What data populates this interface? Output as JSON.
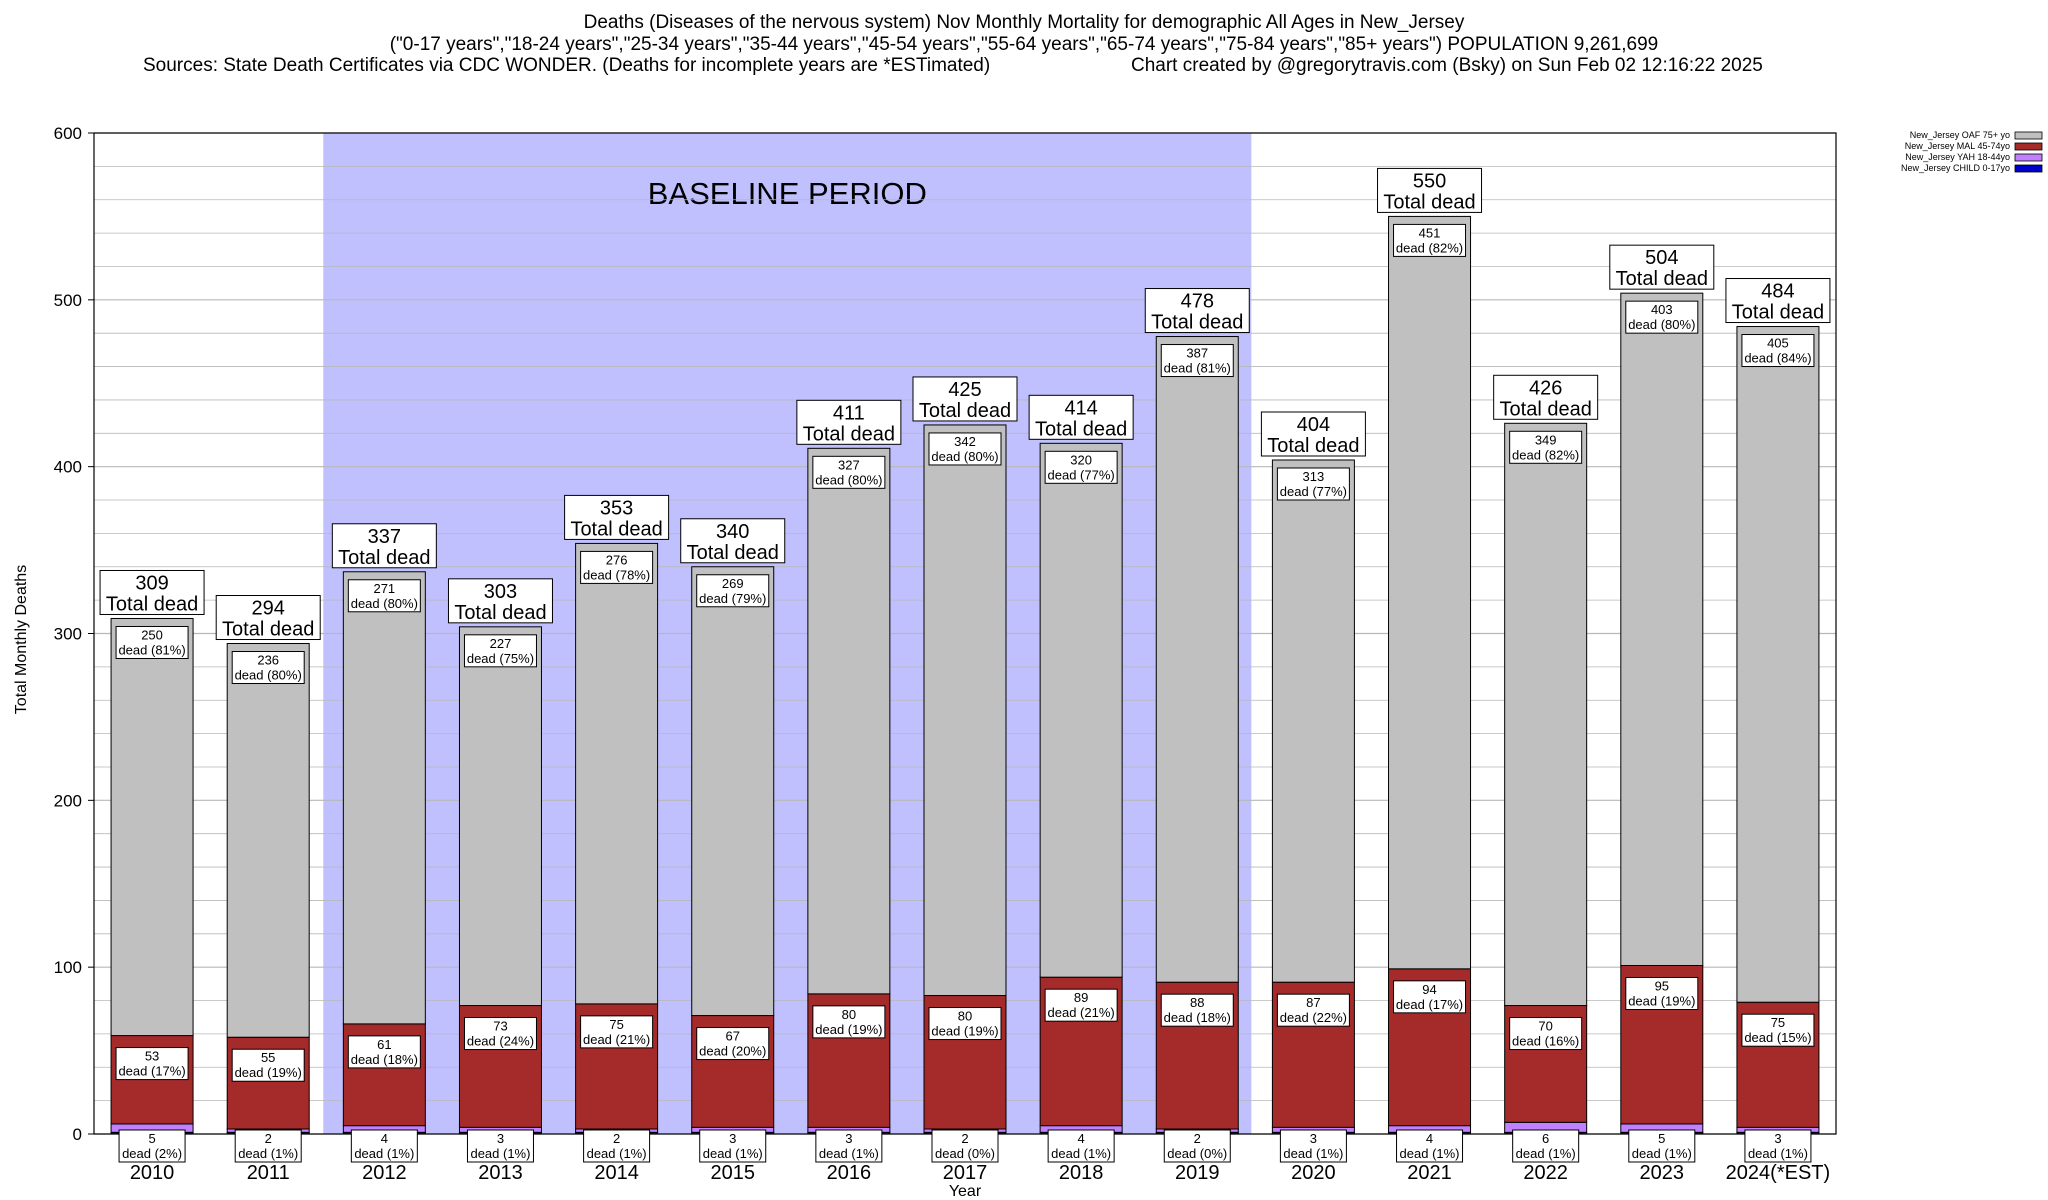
{
  "header": {
    "title": "Deaths (Diseases of the nervous system) Nov Monthly Mortality for demographic All Ages in New_Jersey",
    "subtitle": "(\"0-17 years\",\"18-24 years\",\"25-34 years\",\"35-44 years\",\"45-54 years\",\"55-64 years\",\"65-74 years\",\"75-84 years\",\"85+ years\") POPULATION 9,261,699",
    "sources": "Sources: State Death Certificates via CDC WONDER. (Deaths for incomplete years are *ESTimated)",
    "credit": "Chart created by @gregorytravis.com (Bsky) on Sun Feb 02 12:16:22 2025"
  },
  "colors": {
    "baseline": "#c0c0ff",
    "oaf": "#c0c0c0",
    "mal": "#a52a2a",
    "yah": "#c080ff",
    "child": "#0000cc"
  },
  "chart_data": {
    "type": "bar",
    "stacked": true,
    "xlabel": "Year",
    "ylabel": "Total Monthly Deaths",
    "ylim": [
      0,
      600
    ],
    "yticks": [
      0,
      100,
      200,
      300,
      400,
      500,
      600
    ],
    "grid": true,
    "legend_position": "top-right",
    "categories": [
      "2010",
      "2011",
      "2012",
      "2013",
      "2014",
      "2015",
      "2016",
      "2017",
      "2018",
      "2019",
      "2020",
      "2021",
      "2022",
      "2023",
      "2024(*EST)"
    ],
    "baseline": {
      "label": "BASELINE PERIOD",
      "from": "2012",
      "to": "2019"
    },
    "totals": [
      309,
      294,
      337,
      303,
      353,
      340,
      411,
      425,
      414,
      478,
      404,
      550,
      426,
      504,
      484
    ],
    "total_label": "Total dead",
    "series": [
      {
        "name": "New_Jersey CHILD 0-17yo",
        "color_key": "child",
        "values": [
          1,
          1,
          1,
          1,
          1,
          1,
          1,
          1,
          1,
          1,
          1,
          1,
          1,
          1,
          1
        ]
      },
      {
        "name": "New_Jersey YAH 18-44yo",
        "color_key": "yah",
        "values": [
          5,
          2,
          4,
          3,
          2,
          3,
          3,
          2,
          4,
          2,
          3,
          4,
          6,
          5,
          3
        ],
        "pcts": [
          "(2%)",
          "(1%)",
          "(1%)",
          "(1%)",
          "(1%)",
          "(1%)",
          "(1%)",
          "(0%)",
          "(1%)",
          "(0%)",
          "(1%)",
          "(1%)",
          "(1%)",
          "(1%)",
          "(1%)"
        ]
      },
      {
        "name": "New_Jersey MAL 45-74yo",
        "color_key": "mal",
        "values": [
          53,
          55,
          61,
          73,
          75,
          67,
          80,
          80,
          89,
          88,
          87,
          94,
          70,
          95,
          75
        ],
        "pcts": [
          "(17%)",
          "(19%)",
          "(18%)",
          "(24%)",
          "(21%)",
          "(20%)",
          "(19%)",
          "(19%)",
          "(21%)",
          "(18%)",
          "(22%)",
          "(17%)",
          "(16%)",
          "(19%)",
          "(15%)"
        ]
      },
      {
        "name": "New_Jersey OAF 75+ yo",
        "color_key": "oaf",
        "values": [
          250,
          236,
          271,
          227,
          276,
          269,
          327,
          342,
          320,
          387,
          313,
          451,
          349,
          403,
          405
        ],
        "pcts": [
          "(81%)",
          "(80%)",
          "(80%)",
          "(75%)",
          "(78%)",
          "(79%)",
          "(80%)",
          "(80%)",
          "(77%)",
          "(81%)",
          "(77%)",
          "(82%)",
          "(82%)",
          "(80%)",
          "(84%)"
        ]
      }
    ],
    "legend": [
      "New_Jersey OAF 75+ yo",
      "New_Jersey MAL 45-74yo",
      "New_Jersey YAH 18-44yo",
      "New_Jersey CHILD 0-17yo"
    ],
    "segment_suffix": "dead"
  }
}
